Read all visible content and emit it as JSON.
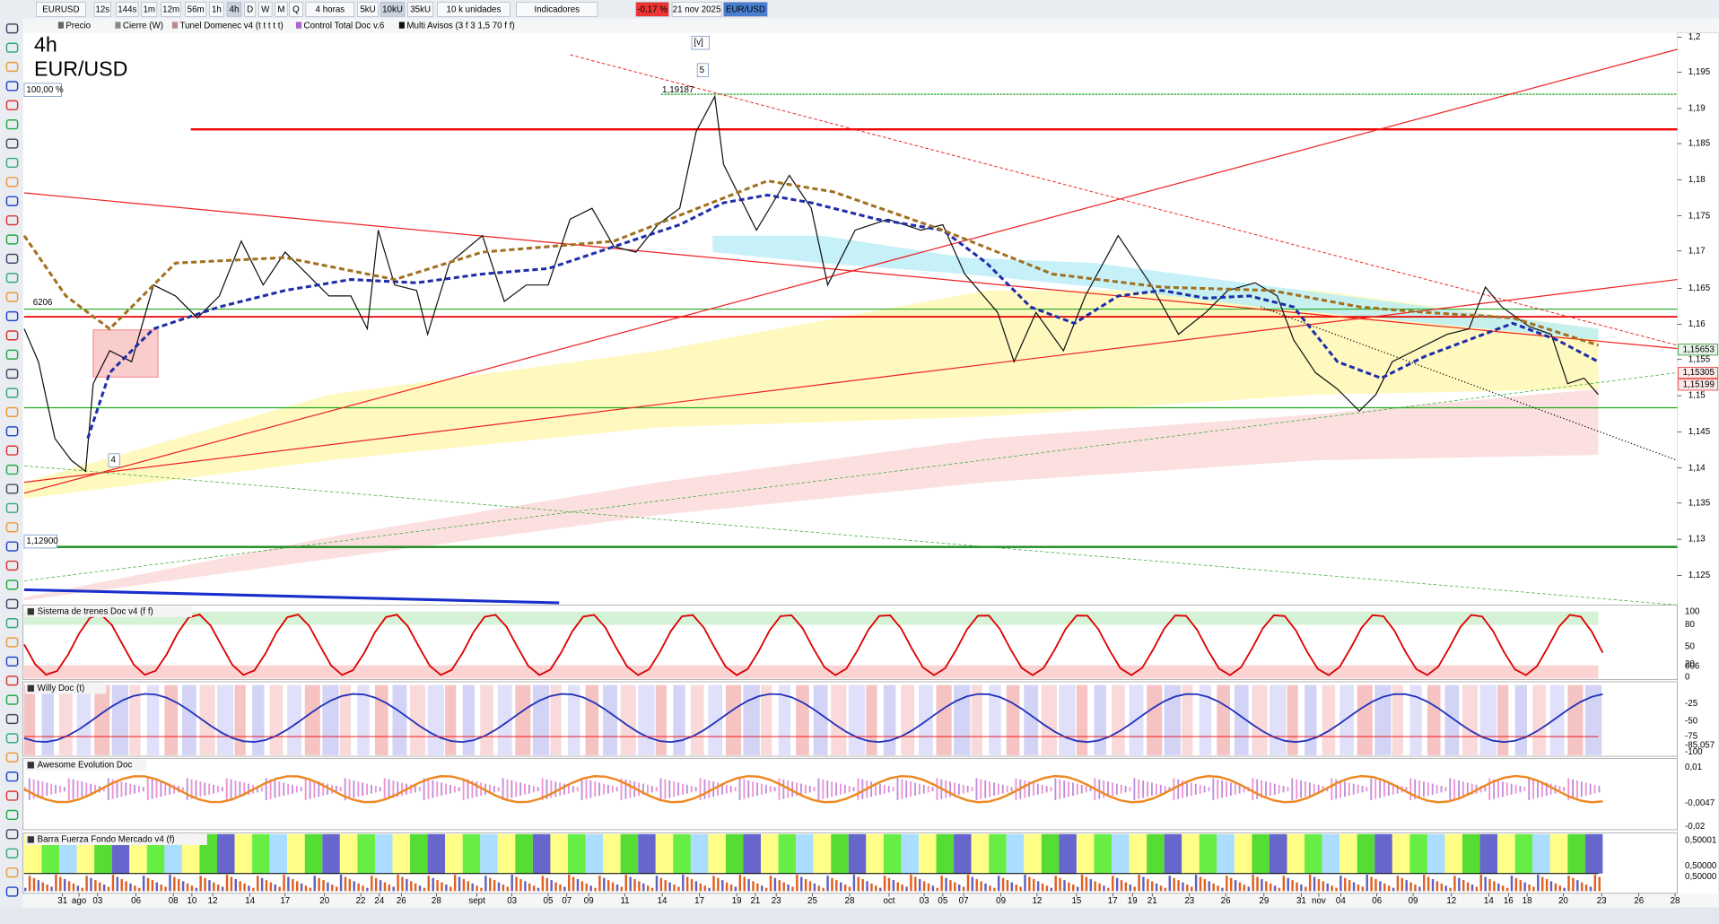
{
  "toolbar": {
    "items": [
      "EURUSD",
      "12s",
      "144s",
      "1m",
      "12m",
      "56m",
      "1h",
      "4h",
      "D",
      "W",
      "M",
      "Q",
      "4 horas",
      "5kU",
      "10kU",
      "35kU",
      "10 k unidades",
      "Indicadores",
      "-0,17 %",
      "21 nov 2025",
      "EUR/USD"
    ]
  },
  "indicators": [
    "Precio",
    "Cierre (W)",
    "Tunel Domenec v4 (t t t t t)",
    "Control Total Doc v.6",
    "Multi Avisos (3 f 3 1,5 70 f f)"
  ],
  "chart": {
    "timeframe": "4h",
    "symbol": "EUR/USD",
    "price_axis": [
      "1,2",
      "1,195",
      "1,19",
      "1,185",
      "1,18",
      "1,175",
      "1,17",
      "1,165",
      "1,16",
      "1,155",
      "1,15",
      "1,145",
      "1,14",
      "1,135",
      "1,13",
      "1,125"
    ],
    "price_tags": [
      "1,15653",
      "1,15305",
      "1,15199"
    ],
    "labels": [
      "100,00 %",
      "1,12900",
      "1,19187",
      "[v]",
      "5",
      "4",
      "6206"
    ]
  },
  "panels": [
    {
      "title": "Sistema de trenes Doc v4 (f f)",
      "axis": [
        "100",
        "80",
        "50",
        "20",
        "006",
        "0"
      ]
    },
    {
      "title": "Willy Doc (t)",
      "axis": [
        "-25",
        "-50",
        "-75",
        "-85,057",
        "-100"
      ]
    },
    {
      "title": "Awesome Evolution Doc",
      "axis": [
        "0,01",
        "-0,0047",
        "-0,02"
      ]
    },
    {
      "title": "Barra Fuerza Fondo Mercado v4 (f)",
      "axis": [
        "0,50001",
        "0,50000",
        "0,50000"
      ]
    }
  ],
  "date_axis": [
    "31",
    "ago",
    "03",
    "06",
    "08",
    "10",
    "12",
    "14",
    "17",
    "20",
    "22",
    "24",
    "26",
    "28",
    "sept",
    "03",
    "05",
    "07",
    "09",
    "11",
    "14",
    "17",
    "19",
    "21",
    "23",
    "25",
    "28",
    "oct",
    "03",
    "05",
    "07",
    "09",
    "12",
    "15",
    "17",
    "19",
    "21",
    "23",
    "26",
    "29",
    "31",
    "nov",
    "04",
    "06",
    "09",
    "12",
    "14",
    "16",
    "18",
    "20",
    "23",
    "26",
    "28"
  ]
}
